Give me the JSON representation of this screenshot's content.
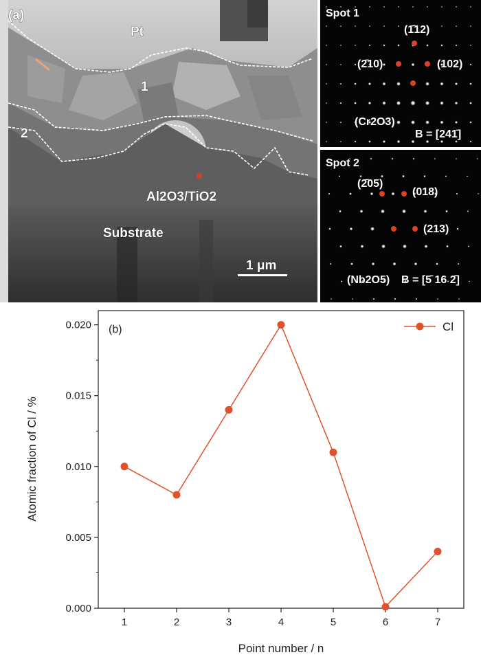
{
  "panel_a": {
    "tag": "(a)",
    "tem_labels": {
      "pt": "Pt",
      "region1": "1",
      "region2": "2",
      "oxide": "Al2O3/TiO2",
      "substrate": "Substrate",
      "scale_bar": "1 μm"
    },
    "spot1": {
      "title": "Spot 1",
      "reflections": [
        "(1̄12)",
        "(2̄10)",
        "(102)"
      ],
      "phase": "(Cr2O3)",
      "zone_axis": "B = [241̄]"
    },
    "spot2": {
      "title": "Spot 2",
      "reflections": [
        "(2̄05)",
        "(018)",
        "(213)"
      ],
      "phase": "(Nb2O5)",
      "zone_axis": "B = [5̄ 16 2̄]"
    }
  },
  "chart_data": {
    "type": "line",
    "panel_tag": "(b)",
    "xlabel": "Point number / n",
    "ylabel": "Atomic fraction of Cl / %",
    "x": [
      1,
      2,
      3,
      4,
      5,
      6,
      7
    ],
    "series": [
      {
        "name": "Cl",
        "values": [
          0.01,
          0.008,
          0.014,
          0.02,
          0.011,
          0.0001,
          0.004
        ]
      }
    ],
    "xlim": [
      0.5,
      7.5
    ],
    "ylim": [
      0.0,
      0.021
    ],
    "xticks": [
      1,
      2,
      3,
      4,
      5,
      6,
      7
    ],
    "yticks": [
      "0.000",
      "0.005",
      "0.010",
      "0.015",
      "0.020"
    ],
    "legend": "top-right",
    "grid": false,
    "colors": {
      "series": "#e0532a",
      "axis": "#222222"
    }
  }
}
